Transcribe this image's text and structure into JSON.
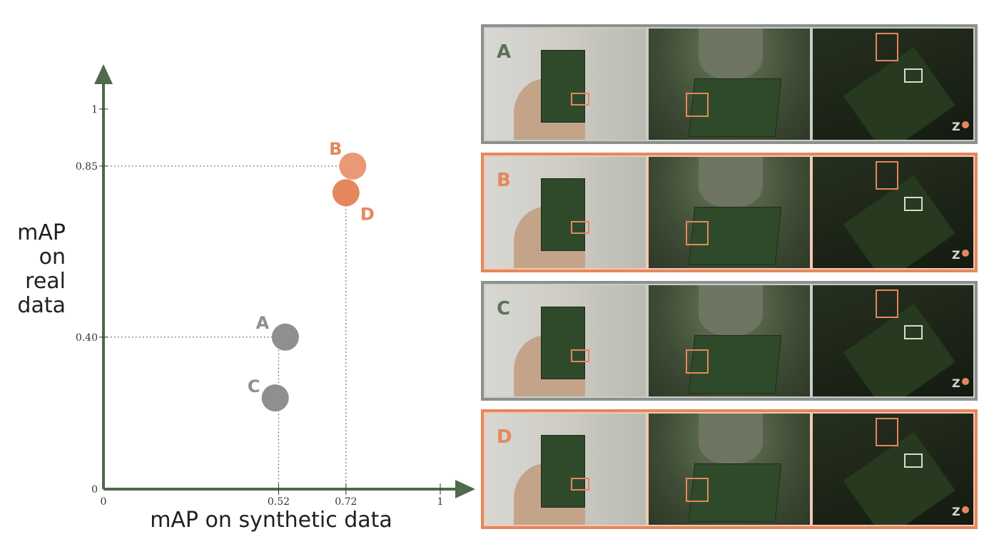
{
  "chart_data": {
    "type": "scatter",
    "xlabel": "mAP on synthetic data",
    "ylabel": "mAP\non\nreal\ndata",
    "xlim": [
      0,
      1
    ],
    "ylim": [
      0,
      1
    ],
    "x_ticks": [
      {
        "value": 0,
        "label": "0"
      },
      {
        "value": 0.52,
        "label": "0.52"
      },
      {
        "value": 0.72,
        "label": "0.72"
      },
      {
        "value": 1,
        "label": "1"
      }
    ],
    "y_ticks": [
      {
        "value": 0,
        "label": "0"
      },
      {
        "value": 0.4,
        "label": "0.40"
      },
      {
        "value": 0.85,
        "label": "0.85"
      },
      {
        "value": 1,
        "label": "1"
      }
    ],
    "points": [
      {
        "label": "A",
        "x": 0.54,
        "y": 0.4,
        "color": "#8e9090"
      },
      {
        "label": "B",
        "x": 0.74,
        "y": 0.85,
        "color": "#e5875d"
      },
      {
        "label": "C",
        "x": 0.51,
        "y": 0.24,
        "color": "#8e9090"
      },
      {
        "label": "D",
        "x": 0.72,
        "y": 0.78,
        "color": "#e5875d"
      }
    ],
    "colors": {
      "axis": "#4f6a4d",
      "gray": "#8e9090",
      "orange": "#e5875d"
    }
  },
  "panels": [
    {
      "letter": "A",
      "style": "gray"
    },
    {
      "letter": "B",
      "style": "orange"
    },
    {
      "letter": "C",
      "style": "gray"
    },
    {
      "letter": "D",
      "style": "orange"
    }
  ]
}
